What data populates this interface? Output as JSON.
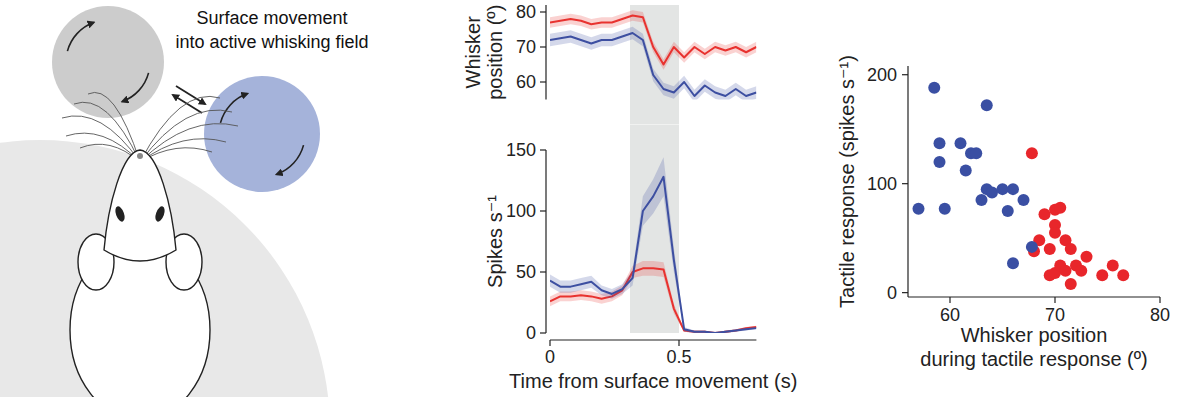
{
  "diagram": {
    "caption": [
      "Surface movement",
      "into active whisking field"
    ]
  },
  "chart_data": [
    {
      "type": "line",
      "ylabel": [
        "Whisker",
        "position (º)"
      ],
      "x": [
        0,
        0.04,
        0.08,
        0.12,
        0.16,
        0.2,
        0.24,
        0.28,
        0.32,
        0.36,
        0.4,
        0.44,
        0.48,
        0.52,
        0.56,
        0.6,
        0.64,
        0.68,
        0.72,
        0.76,
        0.8
      ],
      "xlim": [
        0,
        0.8
      ],
      "ylim": [
        55,
        82
      ],
      "yticks": [
        60,
        70,
        80
      ],
      "tick_labels": "y",
      "shaded_region": [
        0.31,
        0.5
      ],
      "series": [
        {
          "color": "#e8322f",
          "values": [
            77,
            77.5,
            78,
            77.5,
            76.5,
            77,
            77,
            78,
            79,
            78.5,
            70,
            65,
            70,
            67,
            70,
            68,
            70,
            69,
            70,
            68.5,
            70
          ],
          "errors": [
            1.5,
            1.5,
            1.5,
            1.5,
            1.5,
            1.5,
            1.5,
            1.5,
            1.5,
            1.5,
            1.5,
            1.5,
            1.5,
            1.5,
            1.5,
            1.5,
            1.5,
            1.5,
            1.5,
            1.5,
            1.5
          ]
        },
        {
          "color": "#3d4fa1",
          "values": [
            72,
            72.5,
            73,
            72,
            71,
            72,
            72,
            73,
            74,
            72,
            62,
            58,
            57,
            60,
            56,
            59,
            57,
            56,
            58,
            56,
            57
          ],
          "errors": [
            1.8,
            1.8,
            1.8,
            1.8,
            1.8,
            1.8,
            1.8,
            1.8,
            1.8,
            1.8,
            1.8,
            1.8,
            1.8,
            1.8,
            1.8,
            1.8,
            1.8,
            1.8,
            1.8,
            1.8,
            1.8
          ]
        }
      ]
    },
    {
      "type": "line",
      "xlabel": "Time from surface movement (s)",
      "ylabel": "Spikes s⁻¹",
      "x": [
        0,
        0.04,
        0.08,
        0.12,
        0.16,
        0.2,
        0.24,
        0.28,
        0.32,
        0.36,
        0.4,
        0.44,
        0.48,
        0.52,
        0.56,
        0.6,
        0.64,
        0.68,
        0.72,
        0.76,
        0.8
      ],
      "xlim": [
        0,
        0.8
      ],
      "xticks": [
        0,
        0.5
      ],
      "ylim": [
        0,
        150
      ],
      "yticks": [
        0,
        50,
        100,
        150
      ],
      "shaded_region": [
        0.31,
        0.5
      ],
      "series": [
        {
          "color": "#e8322f",
          "values": [
            26,
            30,
            30,
            31,
            30,
            28,
            30,
            35,
            50,
            53,
            53,
            52,
            20,
            2,
            1,
            1,
            0,
            1,
            2,
            4,
            5
          ],
          "errors": [
            4,
            4,
            4,
            4,
            4,
            4,
            4,
            4,
            5,
            6,
            6,
            6,
            4,
            1,
            1,
            1,
            0,
            1,
            1,
            1,
            1
          ]
        },
        {
          "color": "#3d4fa1",
          "values": [
            43,
            38,
            38,
            40,
            42,
            35,
            32,
            36,
            45,
            100,
            112,
            128,
            60,
            3,
            1,
            1,
            0,
            1,
            2,
            3,
            4
          ],
          "errors": [
            5,
            5,
            5,
            5,
            5,
            4,
            4,
            4,
            6,
            12,
            14,
            16,
            10,
            2,
            1,
            1,
            0,
            1,
            1,
            1,
            1
          ]
        }
      ]
    },
    {
      "type": "scatter",
      "xlabel": [
        "Whisker position",
        "during tactile response (º)"
      ],
      "ylabel": "Tactile response (spikes s⁻¹)",
      "xlim": [
        56,
        80
      ],
      "xticks": [
        60,
        70,
        80
      ],
      "ylim": [
        -4,
        208
      ],
      "yticks": [
        0,
        100,
        200
      ],
      "series": [
        {
          "color": "#e8262b",
          "marker": "circle",
          "x": [
            67.8,
            68,
            68.5,
            69,
            69.5,
            69.5,
            70,
            70,
            70,
            70,
            70.5,
            70.5,
            71,
            71,
            71.5,
            71.5,
            72,
            72.5,
            73,
            74.5,
            75.5,
            76.5
          ],
          "values": [
            128,
            38,
            48,
            72,
            40,
            16,
            76,
            62,
            55,
            18,
            25,
            78,
            20,
            48,
            40,
            8,
            25,
            20,
            33,
            16,
            25,
            16
          ]
        },
        {
          "color": "#3a4fa3",
          "marker": "circle",
          "x": [
            58.5,
            57,
            59,
            59,
            59.5,
            61,
            61.5,
            62,
            62.5,
            63,
            63.5,
            63.5,
            64,
            65,
            65.5,
            66,
            67,
            66,
            67.8
          ],
          "values": [
            188,
            77,
            137,
            120,
            77,
            137,
            112,
            128,
            128,
            85,
            172,
            95,
            92,
            95,
            75,
            95,
            85,
            27,
            42
          ]
        }
      ]
    }
  ]
}
